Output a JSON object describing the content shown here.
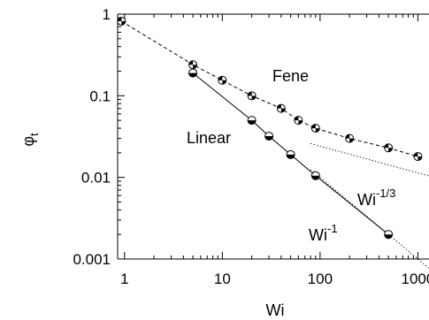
{
  "chart_data": {
    "type": "line",
    "xlabel": "Wi",
    "ylabel": "φ",
    "ylabel_sub": "t",
    "x_scale": "log",
    "y_scale": "log",
    "xlim": [
      0.85,
      1300
    ],
    "ylim": [
      0.001,
      1
    ],
    "x_ticks": [
      {
        "value": 1,
        "label": "1"
      },
      {
        "value": 10,
        "label": "10"
      },
      {
        "value": 100,
        "label": "100"
      },
      {
        "value": 1000,
        "label": "1000"
      }
    ],
    "y_ticks": [
      {
        "value": 1,
        "label": "1"
      },
      {
        "value": 0.1,
        "label": "0.1"
      },
      {
        "value": 0.01,
        "label": "0.01"
      },
      {
        "value": 0.001,
        "label": "0.001"
      }
    ],
    "grid": false,
    "legend": "none",
    "series": [
      {
        "name": "Fene",
        "line_style": "dashed",
        "marker": "half-filled circle",
        "x": [
          0.93,
          5,
          10,
          20,
          40,
          60,
          90,
          200,
          500,
          1000
        ],
        "y": [
          0.82,
          0.24,
          0.155,
          0.1,
          0.07,
          0.05,
          0.04,
          0.03,
          0.023,
          0.018
        ]
      },
      {
        "name": "Linear",
        "line_style": "solid",
        "marker": "half-open circle",
        "x": [
          5,
          20,
          30,
          50,
          90,
          500
        ],
        "y": [
          0.19,
          0.05,
          0.032,
          0.019,
          0.0105,
          0.002
        ]
      }
    ],
    "reference_lines": [
      {
        "label": "Wi",
        "exponent": "-1/3",
        "style": "dotted",
        "x": [
          80,
          1300
        ],
        "y": [
          0.026,
          0.0104
        ]
      },
      {
        "label": "Wi",
        "exponent": "-1",
        "style": "dotted",
        "x": [
          80,
          1300
        ],
        "y": [
          0.0125,
          0.00077
        ]
      }
    ],
    "annotations": {
      "fene_label": "Fene",
      "linear_label": "Linear",
      "power_third_base": "Wi",
      "power_third_exp": "-1/3",
      "power_one_base": "Wi",
      "power_one_exp": "-1"
    }
  }
}
